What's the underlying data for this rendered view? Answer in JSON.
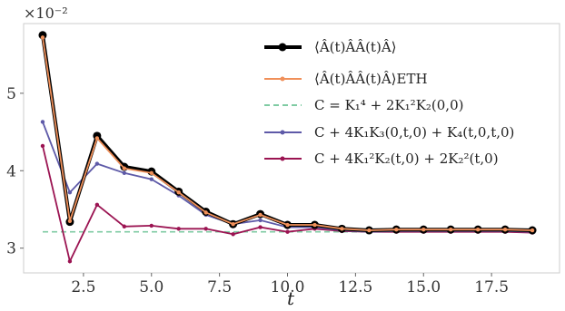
{
  "chart_data": {
    "type": "line",
    "xlabel": "t",
    "ylabel": "",
    "y_multiplier": "×10⁻²",
    "xlim": [
      0.3,
      20.0
    ],
    "ylim": [
      2.68,
      5.9
    ],
    "x_ticks": [
      2.5,
      5.0,
      7.5,
      10.0,
      12.5,
      15.0,
      17.5
    ],
    "x_tick_labels": [
      "2.5",
      "5.0",
      "7.5",
      "10.0",
      "12.5",
      "15.0",
      "17.5"
    ],
    "y_ticks": [
      3,
      4,
      5
    ],
    "y_tick_labels": [
      "3",
      "4",
      "5"
    ],
    "grid": false,
    "legend_position": "top-right",
    "series": [
      {
        "name": "⟨Â(t)ÂÂ(t)Â⟩",
        "color": "#000000",
        "style": "thick-line-circle",
        "x": [
          1,
          2,
          3,
          4,
          5,
          6,
          7,
          8,
          9,
          10,
          11,
          12,
          13,
          14,
          15,
          16,
          17,
          18,
          19
        ],
        "values": [
          5.75,
          3.34,
          4.45,
          4.05,
          3.99,
          3.73,
          3.47,
          3.31,
          3.44,
          3.3,
          3.3,
          3.25,
          3.23,
          3.24,
          3.24,
          3.24,
          3.24,
          3.24,
          3.23
        ]
      },
      {
        "name": "⟨Â(t)ÂÂ(t)Â⟩ETH",
        "color": "#f0905a",
        "style": "line-dot",
        "x": [
          1,
          2,
          3,
          4,
          5,
          6,
          7,
          8,
          9,
          10,
          11,
          12,
          13,
          14,
          15,
          16,
          17,
          18,
          19
        ],
        "values": [
          5.72,
          3.35,
          4.42,
          4.03,
          3.97,
          3.72,
          3.46,
          3.31,
          3.43,
          3.3,
          3.3,
          3.25,
          3.23,
          3.24,
          3.24,
          3.24,
          3.24,
          3.24,
          3.23
        ]
      },
      {
        "name": "C = K₁⁴ + 2K₁²K₂(0,0)",
        "color": "#7fcba3",
        "style": "dashed",
        "x": [
          1,
          19
        ],
        "values": [
          3.21,
          3.21
        ]
      },
      {
        "name": "C + 4K₁K₃(0,t,0) + K₄(t,0,t,0)",
        "color": "#5e5aa8",
        "style": "line-dot",
        "x": [
          1,
          2,
          3,
          4,
          5,
          6,
          7,
          8,
          9,
          10,
          11,
          12,
          13,
          14,
          15,
          16,
          17,
          18,
          19
        ],
        "values": [
          4.63,
          3.72,
          4.09,
          3.97,
          3.89,
          3.68,
          3.43,
          3.31,
          3.36,
          3.27,
          3.27,
          3.23,
          3.21,
          3.22,
          3.22,
          3.22,
          3.22,
          3.22,
          3.21
        ]
      },
      {
        "name": "C + 4K₁²K₂(t,0) + 2K₂²(t,0)",
        "color": "#9b1452",
        "style": "line-dot",
        "x": [
          1,
          2,
          3,
          4,
          5,
          6,
          7,
          8,
          9,
          10,
          11,
          12,
          13,
          14,
          15,
          16,
          17,
          18,
          19
        ],
        "values": [
          4.32,
          2.83,
          3.56,
          3.28,
          3.29,
          3.25,
          3.25,
          3.18,
          3.27,
          3.21,
          3.25,
          3.22,
          3.21,
          3.21,
          3.21,
          3.21,
          3.21,
          3.21,
          3.2
        ]
      }
    ]
  }
}
